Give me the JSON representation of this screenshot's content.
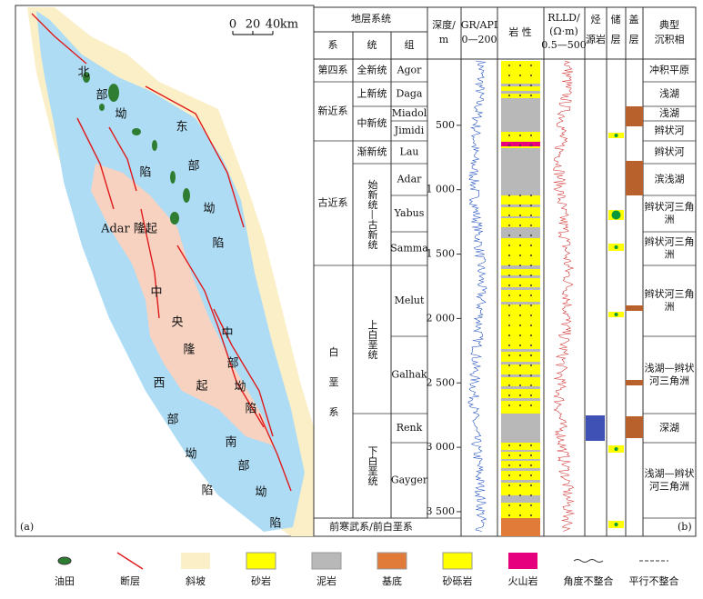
{
  "map": {
    "labels": [
      {
        "text": "北",
        "pos": "n1"
      },
      {
        "text": "部",
        "pos": "n2"
      },
      {
        "text": "坳",
        "pos": "n3"
      },
      {
        "text": "陷",
        "pos": "n4"
      },
      {
        "text": "东",
        "pos": "e1"
      },
      {
        "text": "部",
        "pos": "e2"
      },
      {
        "text": "坳",
        "pos": "e3"
      },
      {
        "text": "陷",
        "pos": "e4"
      },
      {
        "text": "Adar 隆起",
        "pos": "a1"
      },
      {
        "text": "中",
        "pos": "c1"
      },
      {
        "text": "央",
        "pos": "c2"
      },
      {
        "text": "隆",
        "pos": "c3"
      },
      {
        "text": "起",
        "pos": "c4"
      },
      {
        "text": "中",
        "pos": "m1"
      },
      {
        "text": "部",
        "pos": "m2"
      },
      {
        "text": "坳",
        "pos": "m3"
      },
      {
        "text": "陷",
        "pos": "m4"
      },
      {
        "text": "西",
        "pos": "w1"
      },
      {
        "text": "部",
        "pos": "w2"
      },
      {
        "text": "坳",
        "pos": "w3"
      },
      {
        "text": "陷",
        "pos": "w4"
      },
      {
        "text": "南",
        "pos": "s1"
      },
      {
        "text": "部",
        "pos": "s2"
      },
      {
        "text": "坳",
        "pos": "s3"
      },
      {
        "text": "陷",
        "pos": "s4"
      }
    ],
    "scale": [
      "0",
      "20",
      "40",
      "km"
    ],
    "panel": "(a)"
  },
  "column": {
    "panel": "(b)",
    "headers": {
      "system_group": "地层系统",
      "system": "系",
      "series": "统",
      "formation": "组",
      "depth": [
        "深度/",
        "m"
      ],
      "gr": [
        "GR/API",
        "0—200"
      ],
      "lithology": "岩 性",
      "rlld": [
        "RLLD/",
        "(Ω·m)",
        "0.5—500"
      ],
      "source": [
        "烃",
        "源岩"
      ],
      "reservoir": [
        "储",
        "层"
      ],
      "seal": [
        "盖",
        "层"
      ],
      "facies": [
        "典型",
        "沉积相"
      ]
    },
    "systems": [
      "第四系",
      "新近系",
      "古近系",
      "白垩系"
    ],
    "series": [
      "全新统",
      "上新统",
      "中新统",
      "渐新统",
      "始新统—古新统",
      "上白垩统",
      "下白垩统"
    ],
    "formations": [
      "Agor",
      "Daga",
      "Miadol",
      "Jimidi",
      "Lau",
      "Adar",
      "Yabus",
      "Samma",
      "Melut",
      "Galhak",
      "Renk",
      "Gayger"
    ],
    "facies": [
      "冲积平原",
      "浅湖",
      "浅湖",
      "辫状河",
      "辫状河",
      "滨浅湖",
      "辫状河三角洲",
      "辫状河三角洲",
      "辫状河三角洲",
      "浅湖—辫状河三角洲",
      "深湖",
      "浅湖—辫状河三角洲"
    ],
    "basement": "前寒武系/前白垩系",
    "depth_ticks": [
      500,
      {
        "value": 1000,
        "label": "1 000"
      },
      {
        "value": 1500,
        "label": "1 500"
      },
      {
        "value": 2000,
        "label": "2 000"
      },
      {
        "value": 2500,
        "label": "2 500"
      },
      {
        "value": 3000,
        "label": "3 000"
      },
      {
        "value": 3500,
        "label": "3 500"
      }
    ]
  },
  "legend": [
    "油田",
    "断层",
    "斜坡",
    "砂岩",
    "泥岩",
    "基底",
    "砂砾岩",
    "火山岩",
    "角度不整合",
    "平行不整合"
  ]
}
